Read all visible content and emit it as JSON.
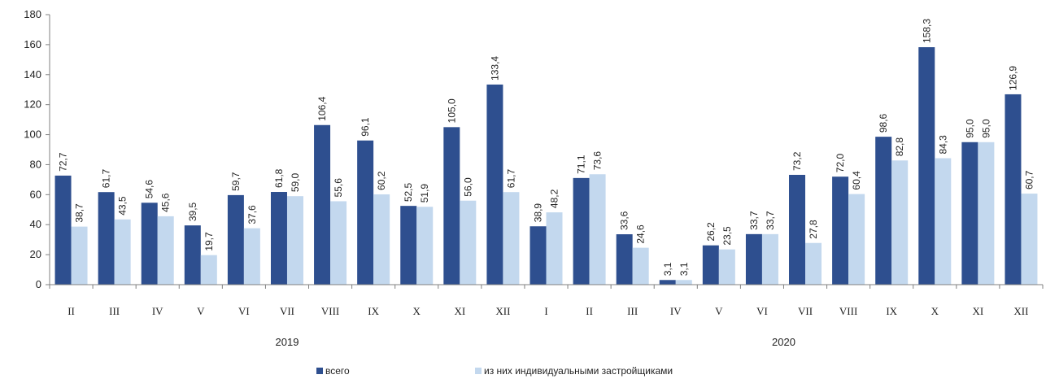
{
  "chart_data": {
    "type": "bar",
    "categories": [
      "II",
      "III",
      "IV",
      "V",
      "VI",
      "VII",
      "VIII",
      "IX",
      "X",
      "XI",
      "XII",
      "I",
      "II",
      "III",
      "IV",
      "V",
      "VI",
      "VII",
      "VIII",
      "IX",
      "X",
      "XI",
      "XII"
    ],
    "groups": [
      {
        "label": "2019",
        "start": 0,
        "end": 10
      },
      {
        "label": "2020",
        "start": 11,
        "end": 22
      }
    ],
    "series": [
      {
        "name": "всего",
        "color": "#2e4f8f",
        "values": [
          72.7,
          61.7,
          54.6,
          39.5,
          59.7,
          61.8,
          106.4,
          96.1,
          52.5,
          105.0,
          133.4,
          38.9,
          71.1,
          33.6,
          3.1,
          26.2,
          33.7,
          73.2,
          72.0,
          98.6,
          158.3,
          95.0,
          126.9
        ],
        "labels": [
          "72,7",
          "61,7",
          "54,6",
          "39,5",
          "59,7",
          "61,8",
          "106,4",
          "96,1",
          "52,5",
          "105,0",
          "133,4",
          "38,9",
          "71,1",
          "33,6",
          "3,1",
          "26,2",
          "33,7",
          "73,2",
          "72,0",
          "98,6",
          "158,3",
          "95,0",
          "126,9"
        ]
      },
      {
        "name": "из них индивидуальными застройщиками",
        "color": "#c3d8ee",
        "values": [
          38.7,
          43.5,
          45.6,
          19.7,
          37.6,
          59.0,
          55.6,
          60.2,
          51.9,
          56.0,
          61.7,
          48.2,
          73.6,
          24.6,
          3.1,
          23.5,
          33.7,
          27.8,
          60.4,
          82.8,
          84.3,
          95.0,
          60.7
        ],
        "labels": [
          "38,7",
          "43,5",
          "45,6",
          "19,7",
          "37,6",
          "59,0",
          "55,6",
          "60,2",
          "51,9",
          "56,0",
          "61,7",
          "48,2",
          "73,6",
          "24,6",
          "3,1",
          "23,5",
          "33,7",
          "27,8",
          "60,4",
          "82,8",
          "84,3",
          "95,0",
          "60,7"
        ]
      }
    ],
    "yticks": [
      0,
      20,
      40,
      60,
      80,
      100,
      120,
      140,
      160,
      180
    ],
    "ylim": [
      0,
      180
    ],
    "legend_position": "bottom",
    "grid": false
  }
}
